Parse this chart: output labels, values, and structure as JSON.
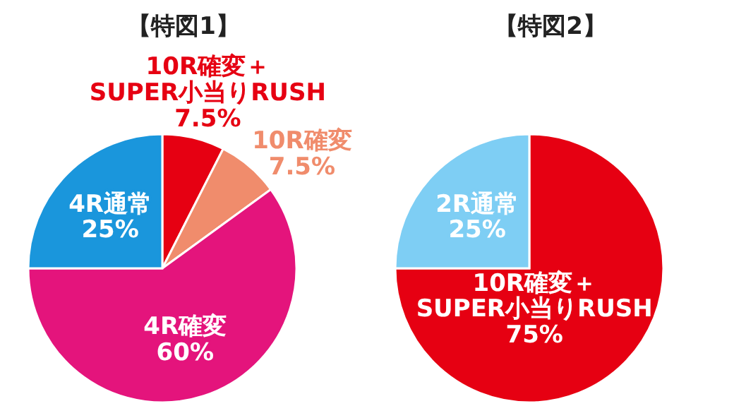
{
  "chart_data": [
    {
      "type": "pie",
      "title": "【特図1】",
      "categories": [
        "10R確変＋\nSUPER小当りRUSH",
        "10R確変",
        "4R確変",
        "4R通常"
      ],
      "values": [
        7.5,
        7.5,
        60,
        25
      ],
      "value_labels": [
        "7.5%",
        "7.5%",
        "60%",
        "25%"
      ],
      "colors": [
        "#e60012",
        "#f08c6c",
        "#e4147c",
        "#1a96dc"
      ],
      "data_labels": true
    },
    {
      "type": "pie",
      "title": "【特図2】",
      "categories": [
        "10R確変＋\nSUPER小当りRUSH",
        "2R通常"
      ],
      "values": [
        75,
        25
      ],
      "value_labels": [
        "75%",
        "25%"
      ],
      "colors": [
        "#e60012",
        "#7ecef4"
      ],
      "data_labels": true
    }
  ]
}
